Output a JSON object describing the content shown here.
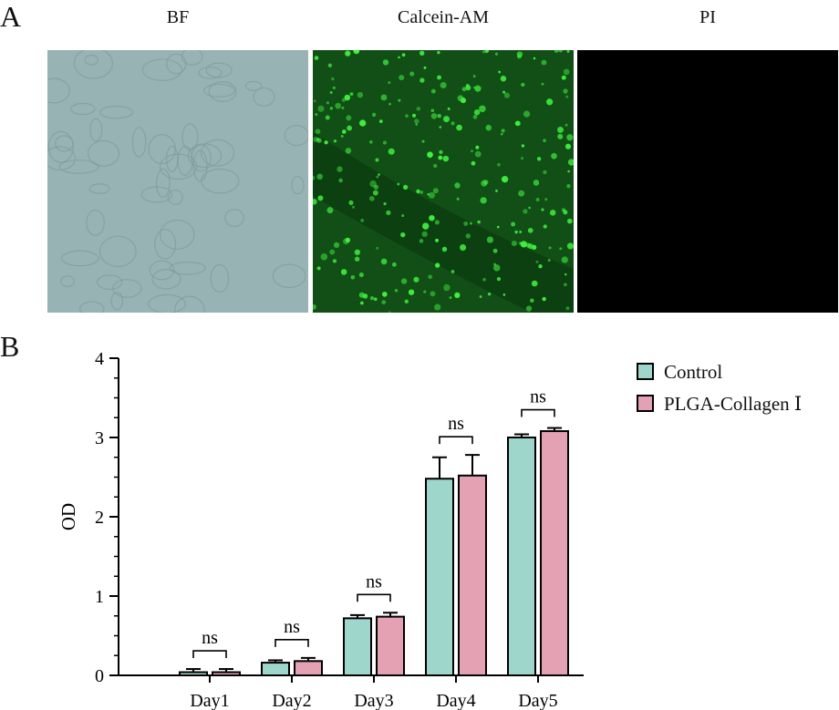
{
  "panel_a": {
    "letter": "A",
    "images": [
      {
        "title": "BF"
      },
      {
        "title": "Calcein-AM"
      },
      {
        "title": "PI"
      }
    ]
  },
  "panel_b": {
    "letter": "B"
  },
  "colors": {
    "control": "#9fd6cc",
    "plga": "#e4a1b3",
    "bf_bg": "#97b3b3",
    "calcein_bg": "#124f16",
    "calcein_dot": "#3ff23f",
    "pi_bg": "#000000"
  },
  "chart_data": {
    "type": "bar",
    "categories": [
      "Day1",
      "Day2",
      "Day3",
      "Day4",
      "Day5"
    ],
    "series": [
      {
        "name": "Control",
        "values": [
          0.04,
          0.16,
          0.72,
          2.48,
          3.0
        ],
        "errors": [
          0.04,
          0.03,
          0.04,
          0.27,
          0.04
        ]
      },
      {
        "name": "PLGA-Collagen Ⅰ",
        "values": [
          0.04,
          0.18,
          0.74,
          2.52,
          3.08
        ],
        "errors": [
          0.04,
          0.04,
          0.05,
          0.26,
          0.04
        ]
      }
    ],
    "significance": [
      "ns",
      "ns",
      "ns",
      "ns",
      "ns"
    ],
    "ylabel": "OD",
    "xlabel": "",
    "ylim": [
      0,
      4
    ],
    "yticks": [
      "0",
      "1",
      "2",
      "3",
      "4"
    ],
    "legend_position": "top-right",
    "grid": false
  }
}
